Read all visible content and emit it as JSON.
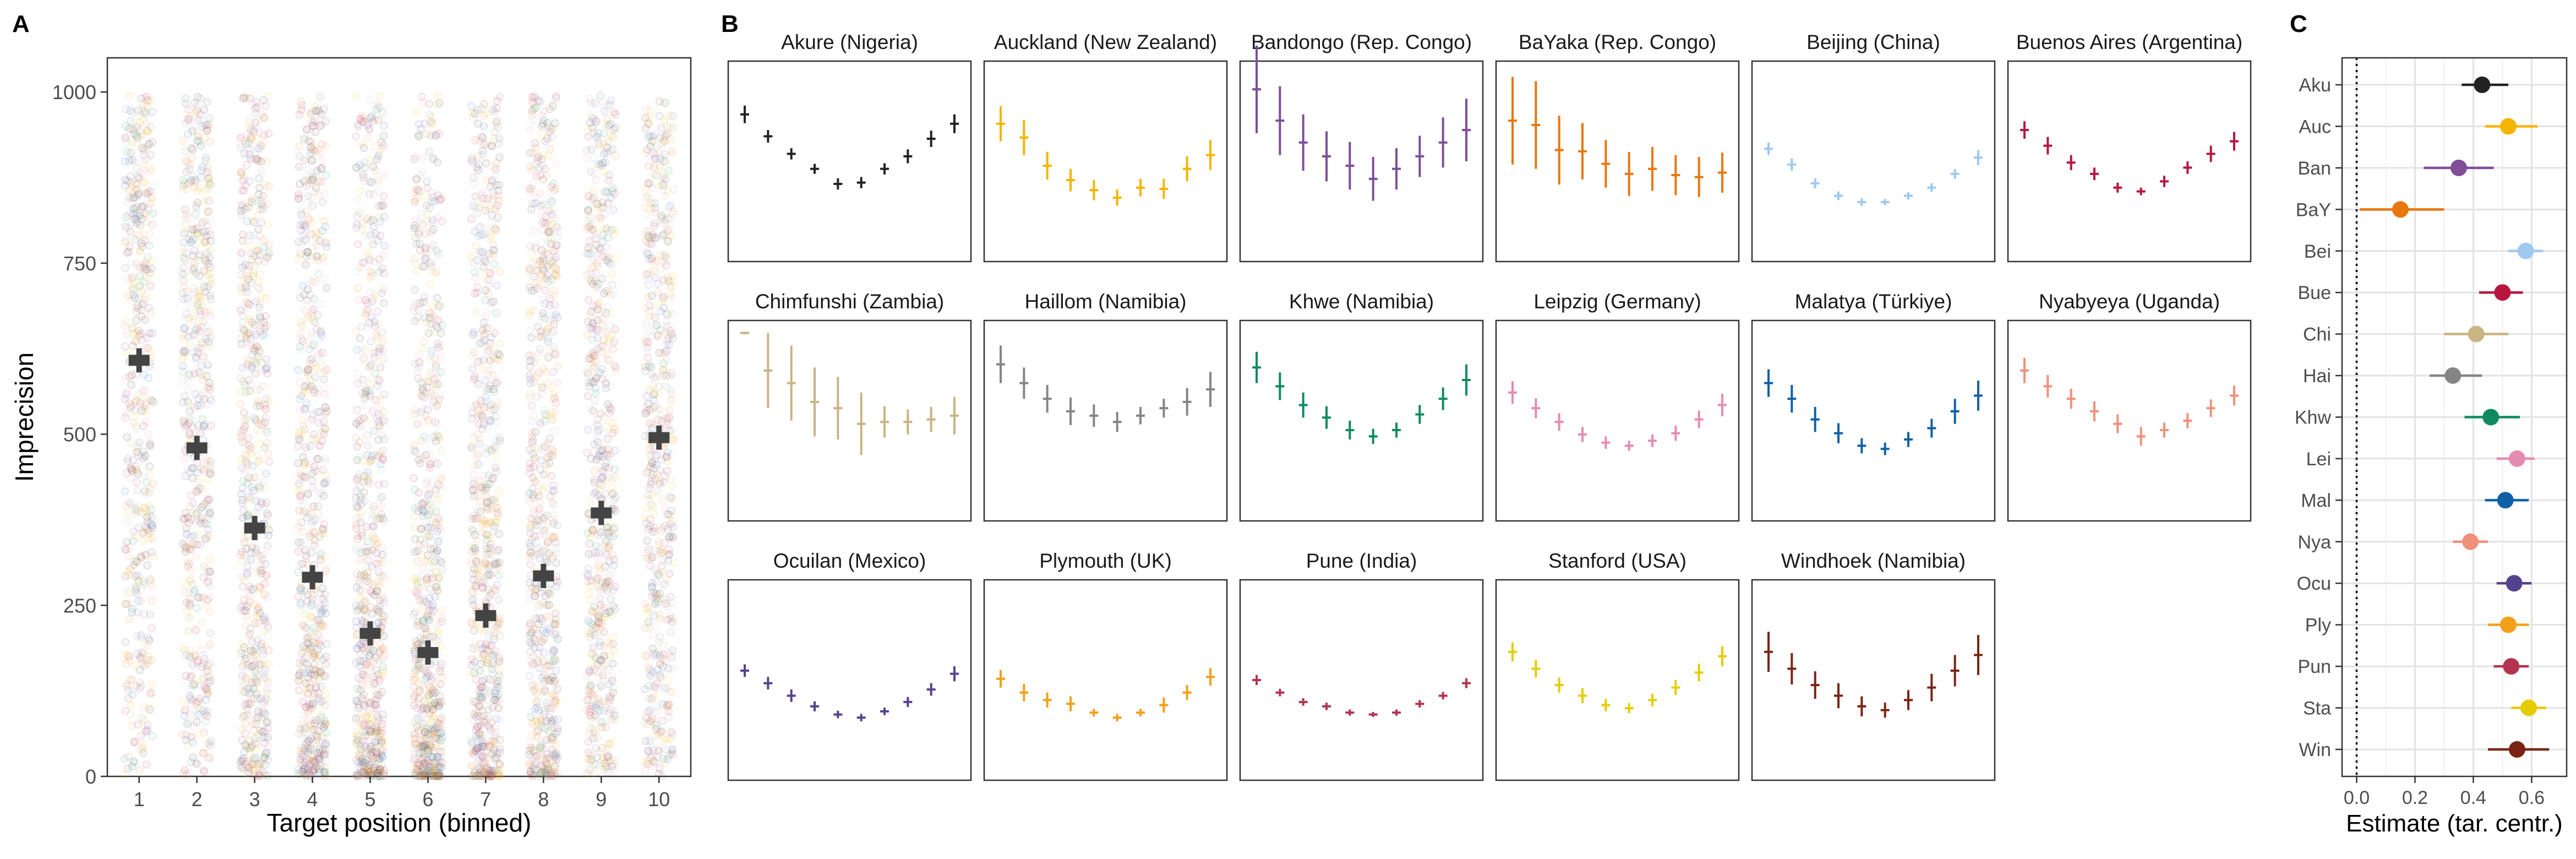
{
  "panels": {
    "a": {
      "letter": "A"
    },
    "b": {
      "letter": "B"
    },
    "c": {
      "letter": "C"
    }
  },
  "chart_data": [
    {
      "type": "scatter",
      "xlabel": "Target position (binned)",
      "ylabel": "Imprecision",
      "categories": [
        "1",
        "2",
        "3",
        "4",
        "5",
        "6",
        "7",
        "8",
        "9",
        "10"
      ],
      "ylim": [
        0,
        1050
      ],
      "yticks": [
        "0",
        "250",
        "500",
        "750",
        "1000"
      ],
      "means": [
        608,
        480,
        363,
        291,
        209,
        181,
        235,
        293,
        385,
        495
      ],
      "grid": false
    },
    {
      "type": "line",
      "x": [
        1,
        2,
        3,
        4,
        5,
        6,
        7,
        8,
        9,
        10
      ],
      "ylim": [
        0,
        1000
      ],
      "series": [
        {
          "name": "Akure (Nigeria)",
          "color": "#222222",
          "values": [
            935,
            900,
            872,
            848,
            824,
            826,
            848,
            868,
            896,
            920
          ],
          "err": [
            14,
            10,
            9,
            8,
            9,
            9,
            9,
            11,
            13,
            15
          ]
        },
        {
          "name": "Auckland (New Zealand)",
          "color": "#F5B400",
          "values": [
            920,
            898,
            853,
            830,
            814,
            802,
            818,
            816,
            848,
            870
          ],
          "err": [
            28,
            28,
            22,
            18,
            16,
            13,
            14,
            16,
            20,
            24
          ]
        },
        {
          "name": "Bandongo (Rep. Congo)",
          "color": "#7E4E98",
          "values": [
            975,
            925,
            890,
            868,
            853,
            832,
            848,
            868,
            890,
            910
          ],
          "err": [
            70,
            55,
            45,
            40,
            38,
            35,
            33,
            33,
            40,
            50
          ]
        },
        {
          "name": "BaYaka (Rep. Congo)",
          "color": "#E8770E",
          "values": [
            925,
            918,
            878,
            876,
            856,
            840,
            848,
            838,
            835,
            842
          ],
          "err": [
            70,
            70,
            55,
            45,
            38,
            35,
            35,
            32,
            32,
            32
          ]
        },
        {
          "name": "Beijing (China)",
          "color": "#9FC9F0",
          "values": [
            880,
            855,
            825,
            805,
            795,
            795,
            805,
            818,
            840,
            866
          ],
          "err": [
            10,
            10,
            8,
            7,
            6,
            5,
            6,
            7,
            8,
            12
          ]
        },
        {
          "name": "Buenos Aires (Argentina)",
          "color": "#B7163E",
          "values": [
            910,
            885,
            858,
            840,
            818,
            812,
            828,
            850,
            872,
            892
          ],
          "err": [
            14,
            14,
            12,
            10,
            8,
            6,
            9,
            10,
            13,
            15
          ]
        },
        {
          "name": "Chimfunshi (Zambia)",
          "color": "#C9B483",
          "values": [
            1000,
            940,
            920,
            890,
            880,
            855,
            858,
            858,
            862,
            868
          ],
          "err": [
            2,
            60,
            60,
            55,
            50,
            50,
            25,
            20,
            20,
            30
          ]
        },
        {
          "name": "Haillom (Namibia)",
          "color": "#858585",
          "values": [
            950,
            920,
            895,
            875,
            868,
            858,
            868,
            880,
            890,
            910
          ],
          "err": [
            30,
            25,
            22,
            22,
            18,
            16,
            14,
            15,
            22,
            28
          ]
        },
        {
          "name": "Khwe (Namibia)",
          "color": "#0E8A5E",
          "values": [
            945,
            915,
            885,
            865,
            845,
            835,
            845,
            870,
            895,
            925
          ],
          "err": [
            25,
            22,
            20,
            18,
            15,
            12,
            12,
            15,
            18,
            25
          ]
        },
        {
          "name": "Leipzig (Germany)",
          "color": "#E58BB2",
          "values": [
            905,
            880,
            858,
            838,
            825,
            820,
            828,
            840,
            862,
            885
          ],
          "err": [
            18,
            16,
            14,
            12,
            10,
            8,
            10,
            12,
            14,
            18
          ]
        },
        {
          "name": "Malatya (Türkiye)",
          "color": "#1060A8",
          "values": [
            920,
            895,
            862,
            840,
            820,
            815,
            830,
            848,
            875,
            900
          ],
          "err": [
            22,
            22,
            20,
            16,
            12,
            10,
            12,
            15,
            20,
            24
          ]
        },
        {
          "name": "Nyabyeya (Uganda)",
          "color": "#F0907A",
          "values": [
            940,
            915,
            895,
            875,
            855,
            835,
            845,
            860,
            880,
            900
          ],
          "err": [
            20,
            18,
            16,
            16,
            15,
            15,
            12,
            12,
            14,
            16
          ]
        },
        {
          "name": "Ocuilan (Mexico)",
          "color": "#55428F",
          "values": [
            875,
            855,
            835,
            818,
            805,
            800,
            810,
            825,
            845,
            870
          ],
          "err": [
            10,
            10,
            10,
            8,
            6,
            6,
            6,
            8,
            10,
            12
          ]
        },
        {
          "name": "Plymouth (UK)",
          "color": "#F2A01A",
          "values": [
            862,
            840,
            828,
            822,
            808,
            800,
            808,
            820,
            840,
            865
          ],
          "err": [
            14,
            14,
            12,
            12,
            6,
            6,
            6,
            12,
            12,
            14
          ]
        },
        {
          "name": "Pune (India)",
          "color": "#B3344F",
          "values": [
            860,
            840,
            825,
            818,
            808,
            805,
            808,
            822,
            835,
            855
          ],
          "err": [
            8,
            6,
            6,
            6,
            5,
            4,
            5,
            6,
            6,
            8
          ]
        },
        {
          "name": "Stanford (USA)",
          "color": "#E5CC00",
          "values": [
            905,
            878,
            852,
            835,
            820,
            815,
            828,
            848,
            872,
            898
          ],
          "err": [
            15,
            14,
            12,
            12,
            10,
            8,
            10,
            12,
            14,
            16
          ]
        },
        {
          "name": "Windhoek (Namibia)",
          "color": "#7B2312",
          "values": [
            905,
            878,
            852,
            835,
            818,
            812,
            828,
            848,
            875,
            900
          ],
          "err": [
            32,
            25,
            22,
            20,
            16,
            12,
            16,
            22,
            25,
            32
          ]
        }
      ]
    },
    {
      "type": "scatter",
      "xlabel": "Estimate (tar. centr.)",
      "xlim": [
        -0.05,
        0.72
      ],
      "xticks": [
        "0.0",
        "0.2",
        "0.4",
        "0.6"
      ],
      "xtick_values": [
        0,
        0.2,
        0.4,
        0.6
      ],
      "reference_line": 0,
      "grid": true,
      "points": [
        {
          "label": "Aku",
          "value": 0.43,
          "lo": 0.36,
          "hi": 0.52,
          "color": "#222222"
        },
        {
          "label": "Auc",
          "value": 0.52,
          "lo": 0.44,
          "hi": 0.62,
          "color": "#F5B400"
        },
        {
          "label": "Ban",
          "value": 0.35,
          "lo": 0.23,
          "hi": 0.47,
          "color": "#7E4E98"
        },
        {
          "label": "BaY",
          "value": 0.15,
          "lo": 0.01,
          "hi": 0.3,
          "color": "#E8770E"
        },
        {
          "label": "Bei",
          "value": 0.58,
          "lo": 0.52,
          "hi": 0.64,
          "color": "#9FC9F0"
        },
        {
          "label": "Bue",
          "value": 0.5,
          "lo": 0.42,
          "hi": 0.57,
          "color": "#B7163E"
        },
        {
          "label": "Chi",
          "value": 0.41,
          "lo": 0.3,
          "hi": 0.52,
          "color": "#C9B483"
        },
        {
          "label": "Hai",
          "value": 0.33,
          "lo": 0.25,
          "hi": 0.43,
          "color": "#858585"
        },
        {
          "label": "Khw",
          "value": 0.46,
          "lo": 0.37,
          "hi": 0.56,
          "color": "#0E8A5E"
        },
        {
          "label": "Lei",
          "value": 0.55,
          "lo": 0.48,
          "hi": 0.61,
          "color": "#E58BB2"
        },
        {
          "label": "Mal",
          "value": 0.51,
          "lo": 0.44,
          "hi": 0.59,
          "color": "#1060A8"
        },
        {
          "label": "Nya",
          "value": 0.39,
          "lo": 0.33,
          "hi": 0.45,
          "color": "#F0907A"
        },
        {
          "label": "Ocu",
          "value": 0.54,
          "lo": 0.48,
          "hi": 0.6,
          "color": "#55428F"
        },
        {
          "label": "Ply",
          "value": 0.52,
          "lo": 0.45,
          "hi": 0.59,
          "color": "#F2A01A"
        },
        {
          "label": "Pun",
          "value": 0.53,
          "lo": 0.47,
          "hi": 0.59,
          "color": "#B3344F"
        },
        {
          "label": "Sta",
          "value": 0.59,
          "lo": 0.53,
          "hi": 0.65,
          "color": "#E5CC00"
        },
        {
          "label": "Win",
          "value": 0.55,
          "lo": 0.45,
          "hi": 0.66,
          "color": "#7B2312"
        }
      ]
    }
  ]
}
